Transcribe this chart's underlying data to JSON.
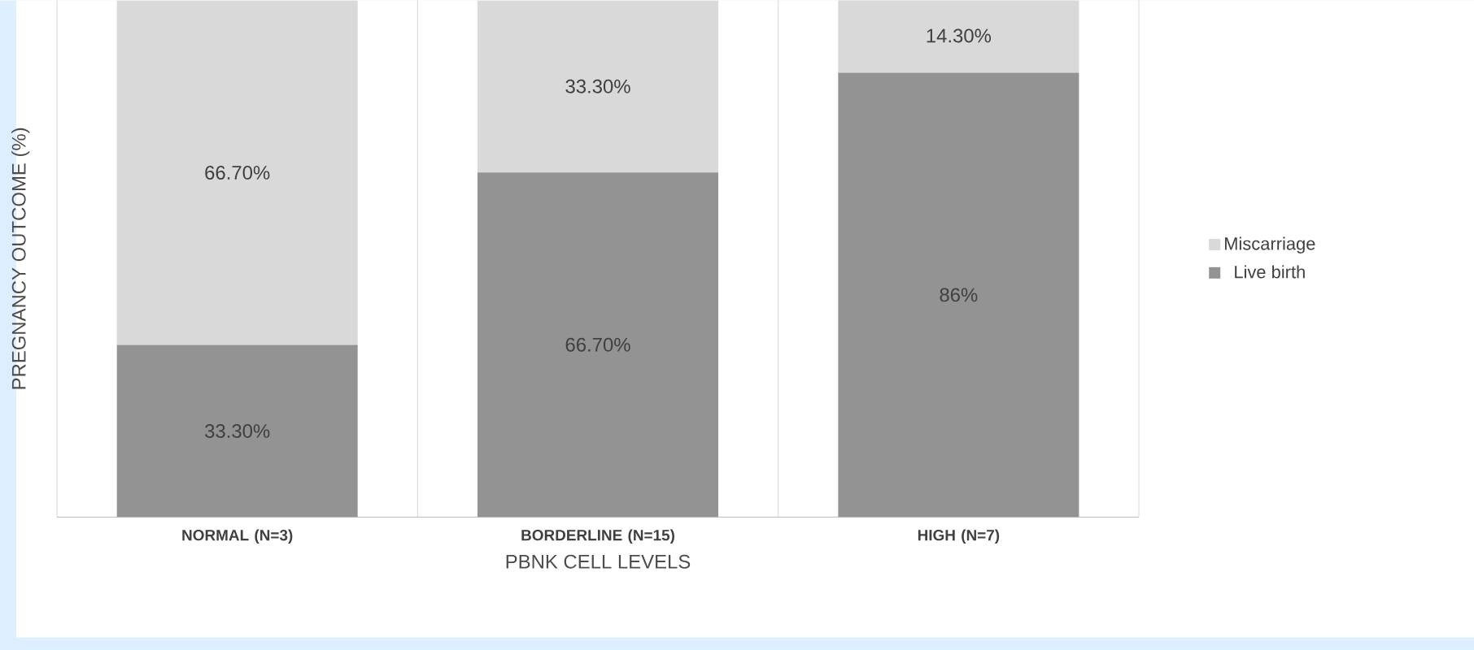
{
  "chart_data": {
    "type": "bar",
    "stacked": true,
    "xlabel": "PBNK CELL LEVELS",
    "ylabel": "PREGNANCY OUTCOME (%)",
    "categories": [
      "NORMAL (N=3)",
      "BORDERLINE (N=15)",
      "HIGH (N=7)"
    ],
    "ylim": [
      0,
      100
    ],
    "tick_labels": "x",
    "legend": "right",
    "series": [
      {
        "name": "Live birth",
        "color": "#939393",
        "values": [
          33.3,
          66.7,
          86
        ],
        "value_labels": [
          "33.30%",
          "66.70%",
          "86%"
        ]
      },
      {
        "name": "Miscarriage",
        "color": "#d9d9d9",
        "values": [
          66.7,
          33.3,
          14.3
        ],
        "value_labels": [
          "66.70%",
          "33.30%",
          "14.30%"
        ]
      }
    ]
  }
}
